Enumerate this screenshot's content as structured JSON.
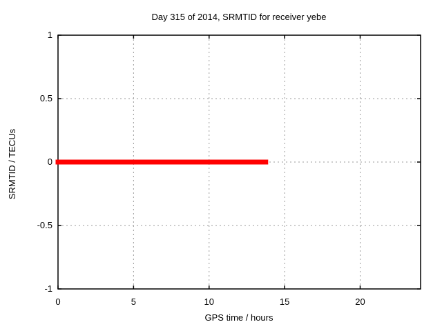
{
  "window": {
    "background": "#ffffff"
  },
  "chart_data": {
    "type": "line",
    "title": "Day 315 of 2014, SRMTID for receiver yebe",
    "xlabel": "GPS time / hours",
    "ylabel": "SRMTID / TECUs",
    "xlim": [
      0,
      24
    ],
    "ylim": [
      -1,
      1
    ],
    "xticks": [
      0,
      5,
      10,
      15,
      20
    ],
    "yticks": [
      -1,
      -0.5,
      0,
      0.5,
      1
    ],
    "grid": true,
    "legend_position": "none",
    "colors": {
      "line": "#ff0000",
      "grid": "#9a9a9a",
      "axis": "#000000",
      "text": "#000000",
      "background": "#ffffff"
    },
    "series": [
      {
        "name": "srmtid",
        "color": "#ff0000",
        "line_width": 7,
        "points": [
          [
            0,
            0
          ],
          [
            13.75,
            0
          ]
        ]
      }
    ]
  }
}
